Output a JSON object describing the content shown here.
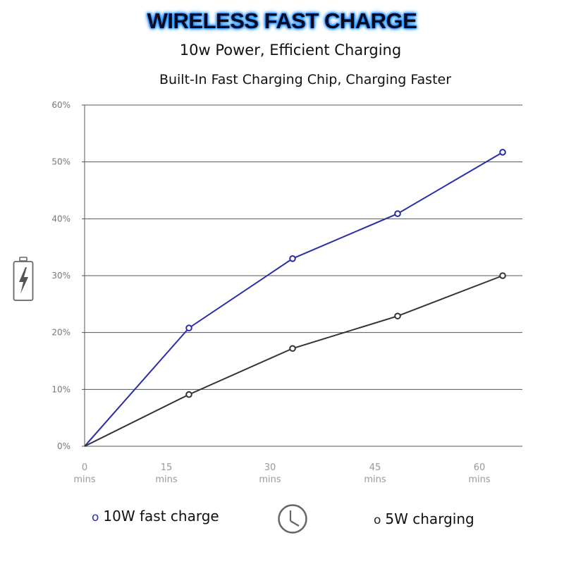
{
  "header": {
    "title": "WIRELESS FAST CHARGE",
    "subtitle": "10w Power, Efficient Charging",
    "tagline": "Built-In Fast Charging Chip, Charging Faster"
  },
  "colors": {
    "fast_series": "#2a2fa8",
    "slow_series": "#333333",
    "grid": "#555555",
    "axis_text": "#777777"
  },
  "icons": {
    "battery": "battery-charging-icon",
    "clock": "clock-icon"
  },
  "chart_data": {
    "type": "line",
    "title": "WIRELESS FAST CHARGE",
    "xlabel": "",
    "ylabel": "",
    "x_ticks": [
      {
        "value": 0,
        "line1": "0",
        "line2": "mins"
      },
      {
        "value": 15,
        "line1": "15",
        "line2": "mins"
      },
      {
        "value": 30,
        "line1": "30",
        "line2": "mins"
      },
      {
        "value": 45,
        "line1": "45",
        "line2": "mins"
      },
      {
        "value": 60,
        "line1": "60",
        "line2": "mins"
      }
    ],
    "y_ticks": [
      "0%",
      "10%",
      "20%",
      "30%",
      "40%",
      "50%",
      "60%"
    ],
    "y_tick_values": [
      0,
      10,
      20,
      30,
      40,
      50,
      60
    ],
    "xlim": [
      0,
      63
    ],
    "ylim": [
      0,
      60
    ],
    "grid": true,
    "series": [
      {
        "name": "10W fast charge",
        "x": [
          0,
          15,
          30,
          45,
          60
        ],
        "values": [
          0,
          20.8,
          33,
          40.9,
          51.7
        ]
      },
      {
        "name": "5W charging",
        "x": [
          0,
          15,
          30,
          45,
          60
        ],
        "values": [
          0,
          9.1,
          17.2,
          22.9,
          30
        ]
      }
    ]
  },
  "legend": {
    "fast_marker": "o",
    "fast_label": "10W fast charge",
    "slow_marker": "o",
    "slow_label": "5W charging"
  }
}
